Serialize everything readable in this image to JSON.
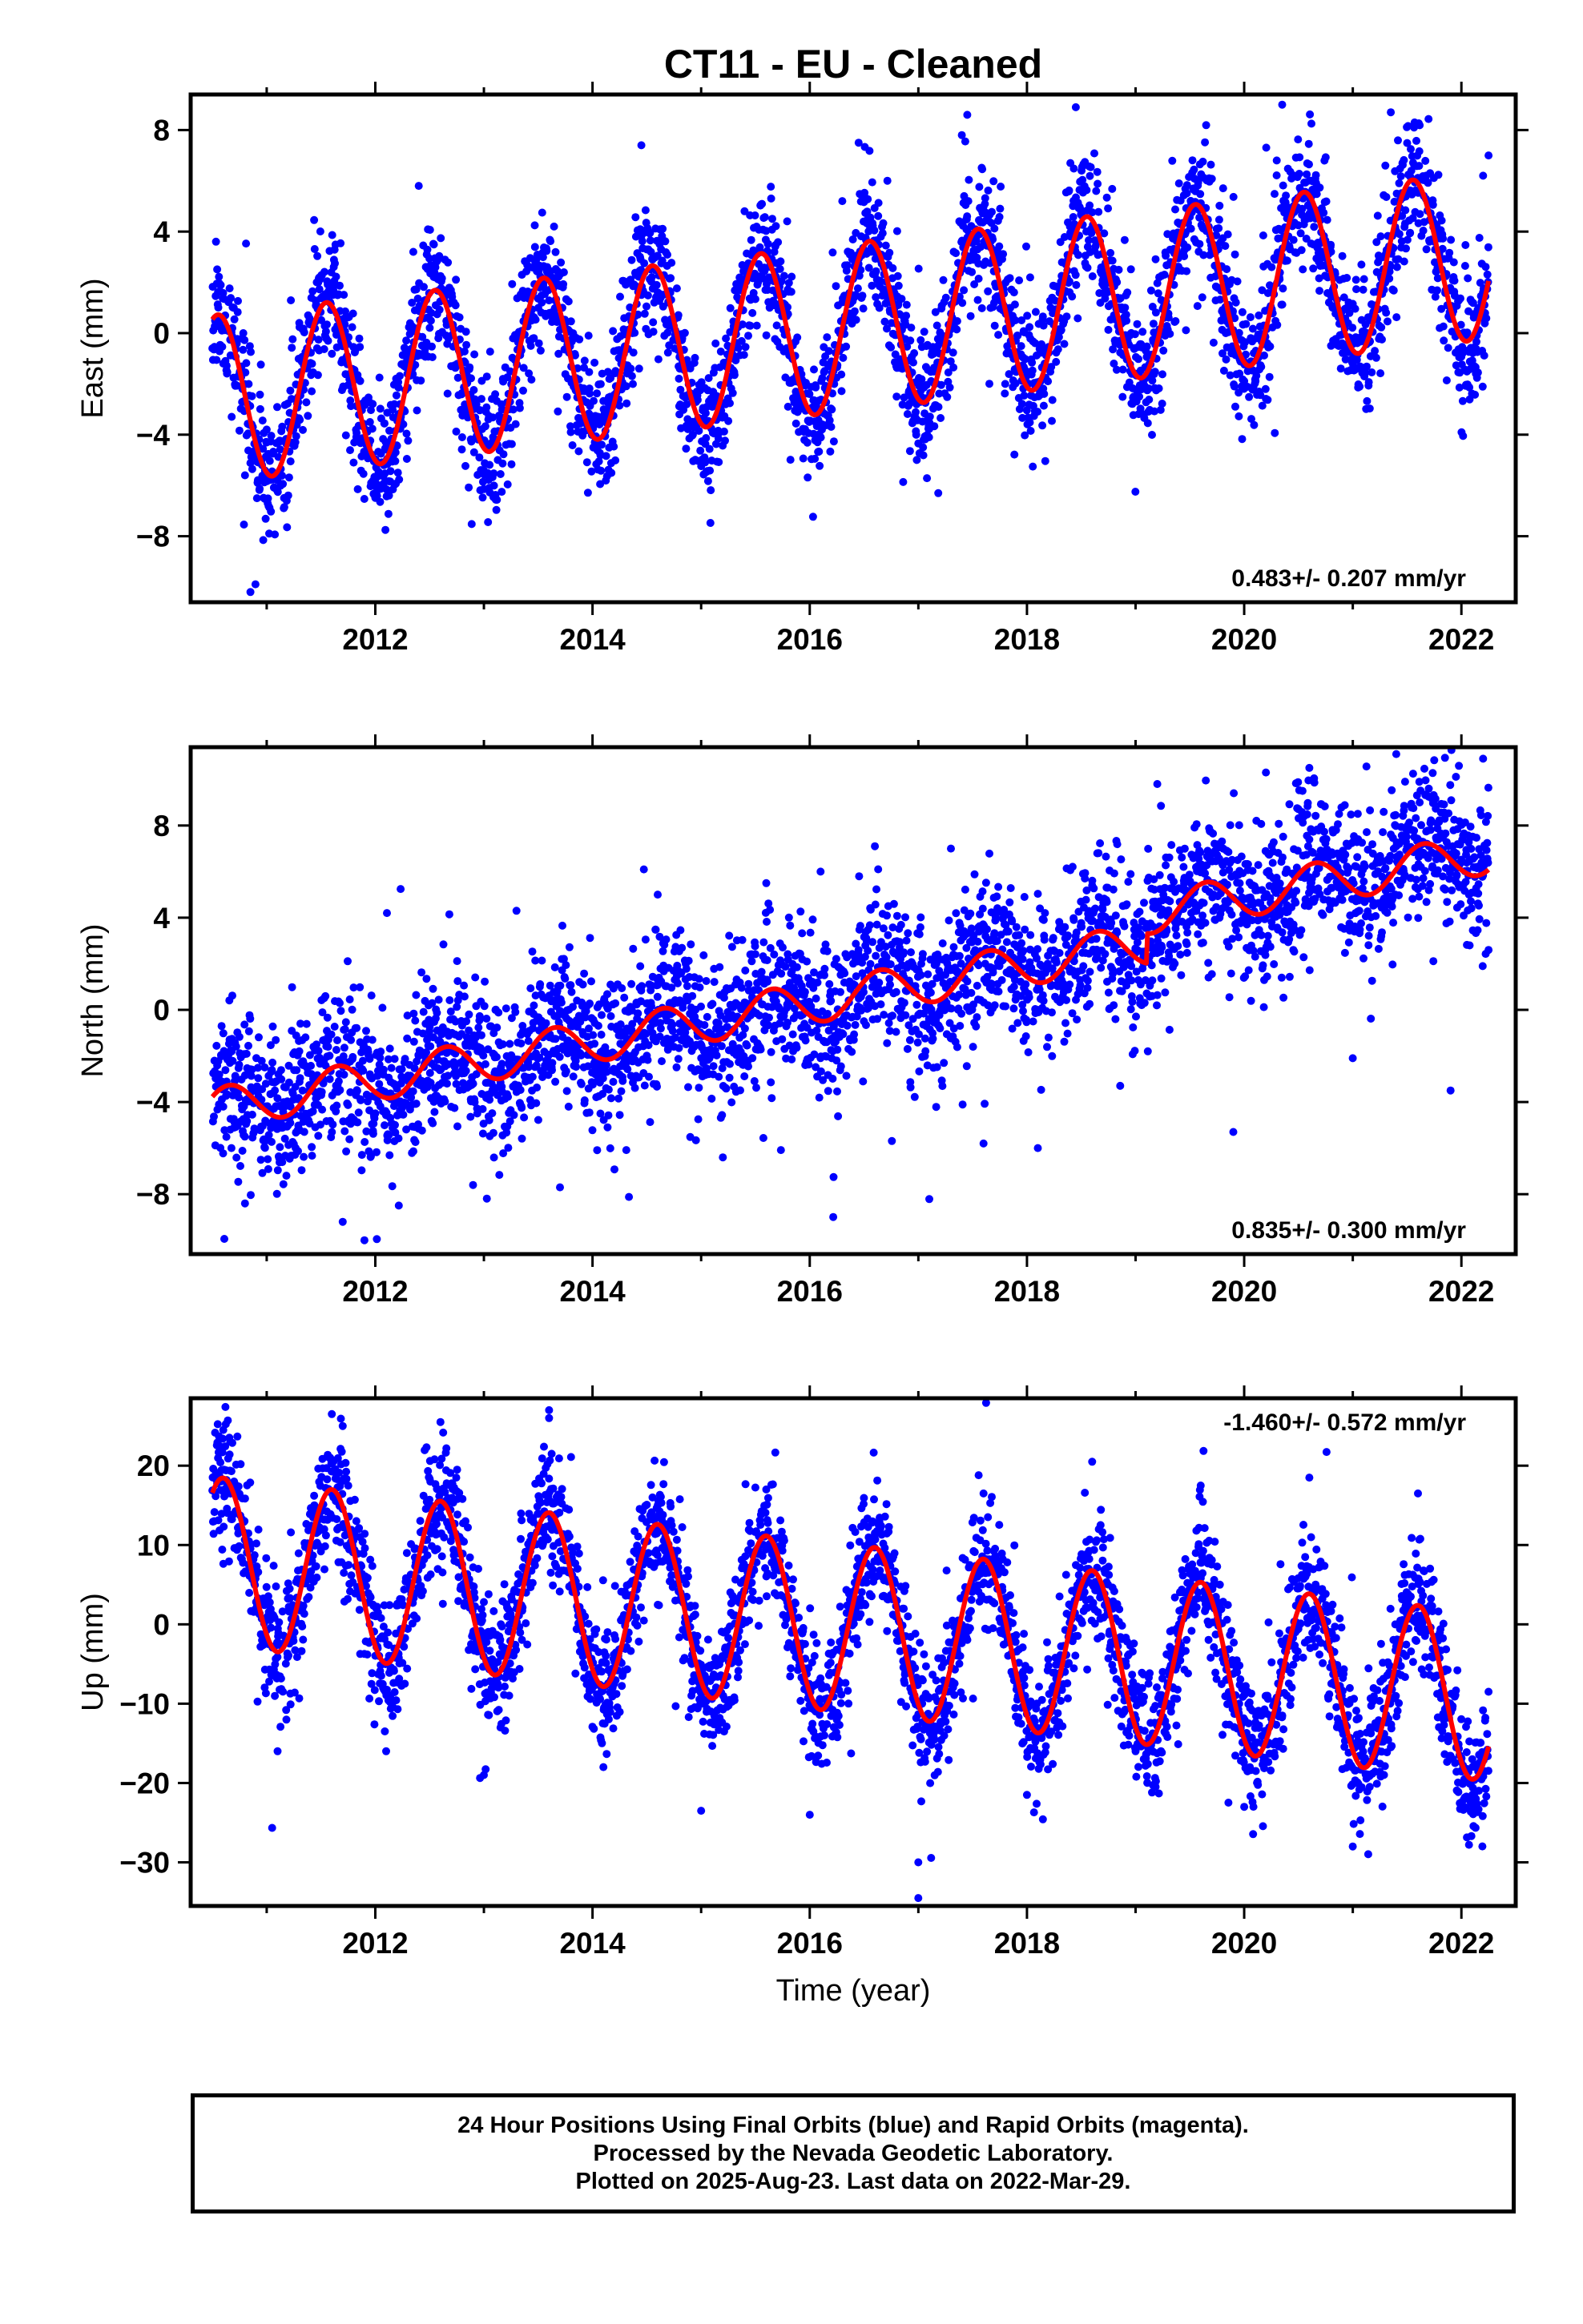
{
  "chart_data": {
    "title": "CT11  - EU - Cleaned",
    "type": "scatter",
    "xlabel": "Time (year)",
    "xlim": [
      2010.3,
      2022.5
    ],
    "xticks": [
      2012,
      2014,
      2016,
      2018,
      2020,
      2022
    ],
    "xtick_labels": [
      "2012",
      "2014",
      "2016",
      "2018",
      "2020",
      "2022"
    ],
    "minor_xticks": [
      2011,
      2013,
      2015,
      2017,
      2019,
      2021
    ],
    "legend": "footer box, bottom",
    "grid": false,
    "colors": {
      "final_orbits": "#0000ff",
      "model_fit": "#ff0000",
      "frame": "#000000"
    },
    "panels": [
      {
        "name": "east",
        "ylabel": "East (mm)",
        "ylim": [
          -10.6,
          9.4
        ],
        "yticks": [
          -8,
          -4,
          0,
          4,
          8
        ],
        "ytick_labels": [
          "−8",
          "−4",
          "0",
          "4",
          "8"
        ],
        "rate_label": "0.483+/- 0.207 mm/yr",
        "rate_position": "bottom-right",
        "model": {
          "start": 2010.5,
          "end": 2022.25,
          "offset": -2.6,
          "rate": 0.483,
          "amplitude": 3.3,
          "phase_year": 2011.3,
          "step": 0,
          "step_year": 2019.0
        },
        "scatter": {
          "sigma": 1.3,
          "outlier_rate": 0.03,
          "seed": 11
        },
        "series": [
          {
            "name": "Final Orbits",
            "color": "#0000ff",
            "points": [
              [
                2010.6,
                -1.2
              ],
              [
                2010.8,
                -5.6
              ],
              [
                2010.85,
                -10.2
              ],
              [
                2011.0,
                -3.8
              ],
              [
                2011.3,
                0.4
              ],
              [
                2011.8,
                -5.1
              ],
              [
                2012.35,
                3.2
              ],
              [
                2012.4,
                5.8
              ],
              [
                2012.8,
                -4.1
              ],
              [
                2013.35,
                2.3
              ],
              [
                2013.8,
                -3.9
              ],
              [
                2014.4,
                3.8
              ],
              [
                2014.45,
                7.4
              ],
              [
                2014.8,
                -3.2
              ],
              [
                2015.4,
                4.8
              ],
              [
                2015.8,
                -2.9
              ],
              [
                2016.3,
                5.2
              ],
              [
                2016.45,
                7.5
              ],
              [
                2016.8,
                -2.5
              ],
              [
                2017.4,
                7.8
              ],
              [
                2017.45,
                8.6
              ],
              [
                2017.8,
                -2.0
              ],
              [
                2018.4,
                6.7
              ],
              [
                2018.45,
                8.9
              ],
              [
                2018.8,
                -1.2
              ],
              [
                2019.4,
                5.9
              ],
              [
                2019.8,
                -0.8
              ],
              [
                2020.3,
                6.8
              ],
              [
                2020.35,
                9.0
              ],
              [
                2020.8,
                -0.5
              ],
              [
                2021.3,
                6.6
              ],
              [
                2021.35,
                8.7
              ],
              [
                2021.8,
                0.2
              ],
              [
                2022.2,
                6.2
              ],
              [
                2022.25,
                7.0
              ]
            ]
          }
        ]
      },
      {
        "name": "north",
        "ylabel": "North (mm)",
        "ylim": [
          -10.6,
          11.4
        ],
        "yticks": [
          -8,
          -4,
          0,
          4,
          8
        ],
        "ytick_labels": [
          "−8",
          "−4",
          "0",
          "4",
          "8"
        ],
        "rate_label": "0.835+/- 0.300 mm/yr",
        "rate_position": "bottom-right",
        "model": {
          "start": 2010.5,
          "end": 2022.25,
          "offset": -4.3,
          "rate": 0.835,
          "amplitude": 0.9,
          "phase_year": 2011.4,
          "step": 1.3,
          "step_year": 2019.1
        },
        "scatter": {
          "sigma": 1.6,
          "outlier_rate": 0.03,
          "seed": 23
        },
        "series": [
          {
            "name": "Final Orbits",
            "color": "#0000ff",
            "points": [
              [
                2010.6,
                -4.2
              ],
              [
                2010.8,
                -8.4
              ],
              [
                2011.3,
                -1.8
              ],
              [
                2011.7,
                -9.2
              ],
              [
                2011.9,
                -10.0
              ],
              [
                2012.4,
                -2.0
              ],
              [
                2012.9,
                -7.6
              ],
              [
                2013.3,
                4.3
              ],
              [
                2013.7,
                -7.7
              ],
              [
                2014.3,
                -1.0
              ],
              [
                2014.6,
                5.0
              ],
              [
                2015.2,
                -6.4
              ],
              [
                2015.6,
                5.5
              ],
              [
                2016.1,
                6.0
              ],
              [
                2016.6,
                7.1
              ],
              [
                2017.3,
                7.0
              ],
              [
                2017.6,
                -5.8
              ],
              [
                2018.1,
                -6.0
              ],
              [
                2018.6,
                5.4
              ],
              [
                2019.2,
                9.8
              ],
              [
                2019.9,
                -5.3
              ],
              [
                2020.2,
                10.3
              ],
              [
                2020.6,
                10.5
              ],
              [
                2021.0,
                -2.1
              ],
              [
                2021.4,
                11.1
              ],
              [
                2021.7,
                9.6
              ],
              [
                2021.9,
                -3.5
              ],
              [
                2022.2,
                10.9
              ],
              [
                2022.25,
                2.6
              ]
            ]
          }
        ]
      },
      {
        "name": "up",
        "ylabel": "Up (mm)",
        "ylim": [
          -35.5,
          28.5
        ],
        "yticks": [
          -30,
          -20,
          -10,
          0,
          10,
          20
        ],
        "ytick_labels": [
          "−30",
          "−20",
          "−10",
          "0",
          "10",
          "20"
        ],
        "rate_label": "-1.460+/- 0.572 mm/yr",
        "rate_position": "top-right",
        "model": {
          "start": 2010.5,
          "end": 2022.25,
          "offset": 8.0,
          "rate": -1.46,
          "amplitude": 10.6,
          "phase_year": 2010.35,
          "step": 0,
          "step_year": 2019.0
        },
        "scatter": {
          "sigma": 4.0,
          "outlier_rate": 0.03,
          "seed": 37
        },
        "series": [
          {
            "name": "Final Orbits",
            "color": "#0000ff",
            "points": [
              [
                2010.6,
                24.5
              ],
              [
                2010.7,
                18.0
              ],
              [
                2011.1,
                -16.0
              ],
              [
                2011.6,
                26.5
              ],
              [
                2011.7,
                25.0
              ],
              [
                2012.1,
                -16.0
              ],
              [
                2012.6,
                25.5
              ],
              [
                2013.0,
                -19.0
              ],
              [
                2013.6,
                27.0
              ],
              [
                2013.6,
                26.0
              ],
              [
                2014.1,
                -18.0
              ],
              [
                2014.6,
                15.0
              ],
              [
                2015.0,
                -23.5
              ],
              [
                2015.6,
                17.0
              ],
              [
                2016.0,
                -24.0
              ],
              [
                2016.6,
                11.5
              ],
              [
                2017.0,
                -34.5
              ],
              [
                2017.0,
                -30.0
              ],
              [
                2017.6,
                16.5
              ],
              [
                2018.0,
                -21.5
              ],
              [
                2018.6,
                20.5
              ],
              [
                2019.0,
                -16.0
              ],
              [
                2019.6,
                17.5
              ],
              [
                2020.0,
                -23.0
              ],
              [
                2020.6,
                18.5
              ],
              [
                2021.0,
                -28.0
              ],
              [
                2021.6,
                16.5
              ],
              [
                2022.1,
                -21.5
              ],
              [
                2022.25,
                -8.5
              ]
            ]
          }
        ]
      }
    ]
  },
  "footer": {
    "line1": "24 Hour Positions Using Final Orbits (blue) and Rapid Orbits (magenta).",
    "line2": "Processed by the Nevada Geodetic Laboratory.",
    "line3": "Plotted on 2025-Aug-23. Last data on 2022-Mar-29."
  }
}
